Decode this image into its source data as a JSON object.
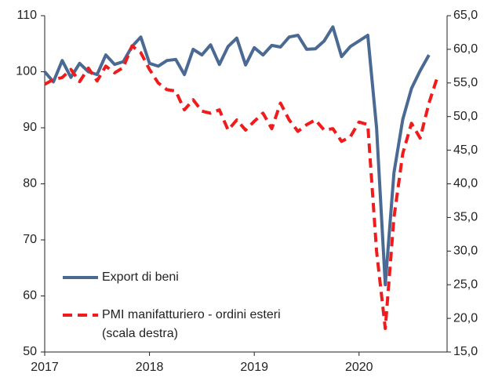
{
  "chart_data": {
    "type": "line",
    "x": [
      2017,
      2017.083,
      2017.167,
      2017.25,
      2017.333,
      2017.417,
      2017.5,
      2017.583,
      2017.667,
      2017.75,
      2017.833,
      2017.917,
      2018,
      2018.083,
      2018.167,
      2018.25,
      2018.333,
      2018.417,
      2018.5,
      2018.583,
      2018.667,
      2018.75,
      2018.833,
      2018.917,
      2019,
      2019.083,
      2019.167,
      2019.25,
      2019.333,
      2019.417,
      2019.5,
      2019.583,
      2019.667,
      2019.75,
      2019.833,
      2019.917,
      2020,
      2020.083,
      2020.167,
      2020.25,
      2020.333,
      2020.417,
      2020.5,
      2020.583,
      2020.667,
      2020.75
    ],
    "series": [
      {
        "name": "Export di beni",
        "color": "#4a6a94",
        "dashed": false,
        "values": [
          100,
          98.2,
          102,
          99,
          101.5,
          100,
          99.5,
          103,
          101.3,
          101.8,
          104.5,
          106.2,
          101.5,
          101,
          102,
          102.2,
          99.5,
          104,
          103,
          104.8,
          101.3,
          104.5,
          106,
          101.2,
          104.3,
          103,
          104.7,
          104.4,
          106.2,
          106.5,
          104,
          104.1,
          105.5,
          108,
          102.7,
          104.5,
          105.5,
          106.5,
          90,
          62,
          82,
          91.5,
          97,
          100.2,
          103,
          null
        ]
      },
      {
        "name": "PMI manifatturiero - ordini esteri (scala destra)",
        "color": "#ee1c1c",
        "dashed": true,
        "axis": "y2",
        "values": [
          54.8,
          55.5,
          55.8,
          57,
          55.2,
          57.2,
          55.3,
          57.5,
          56.5,
          57.3,
          60.5,
          59.5,
          57,
          55,
          54,
          53.8,
          51,
          52.5,
          50.8,
          50.5,
          51,
          48,
          49.5,
          48,
          49.3,
          50.5,
          48.2,
          52,
          49.5,
          47.8,
          48.8,
          49.5,
          48,
          48.2,
          46.3,
          47,
          49.2,
          48.8,
          30,
          18.5,
          35,
          44.5,
          49,
          46.8,
          52,
          56
        ]
      }
    ],
    "xlim": [
      2017,
      2020.84
    ],
    "xticks": [
      2017,
      2018,
      2019,
      2020
    ],
    "ylim": [
      50,
      110
    ],
    "yticks": [
      50,
      60,
      70,
      80,
      90,
      100,
      110
    ],
    "y2lim": [
      15,
      65
    ],
    "y2ticks": [
      {
        "value": 15,
        "label": "15,0"
      },
      {
        "value": 20,
        "label": "20,0"
      },
      {
        "value": 25,
        "label": "25,0"
      },
      {
        "value": 30,
        "label": "30,0"
      },
      {
        "value": 35,
        "label": "35,0"
      },
      {
        "value": 40,
        "label": "40,0"
      },
      {
        "value": 45,
        "label": "45,0"
      },
      {
        "value": 50,
        "label": "50,0"
      },
      {
        "value": 55,
        "label": "55,0"
      },
      {
        "value": 60,
        "label": "60,0"
      },
      {
        "value": 65,
        "label": "65,0"
      }
    ],
    "legend": "lower-left"
  }
}
